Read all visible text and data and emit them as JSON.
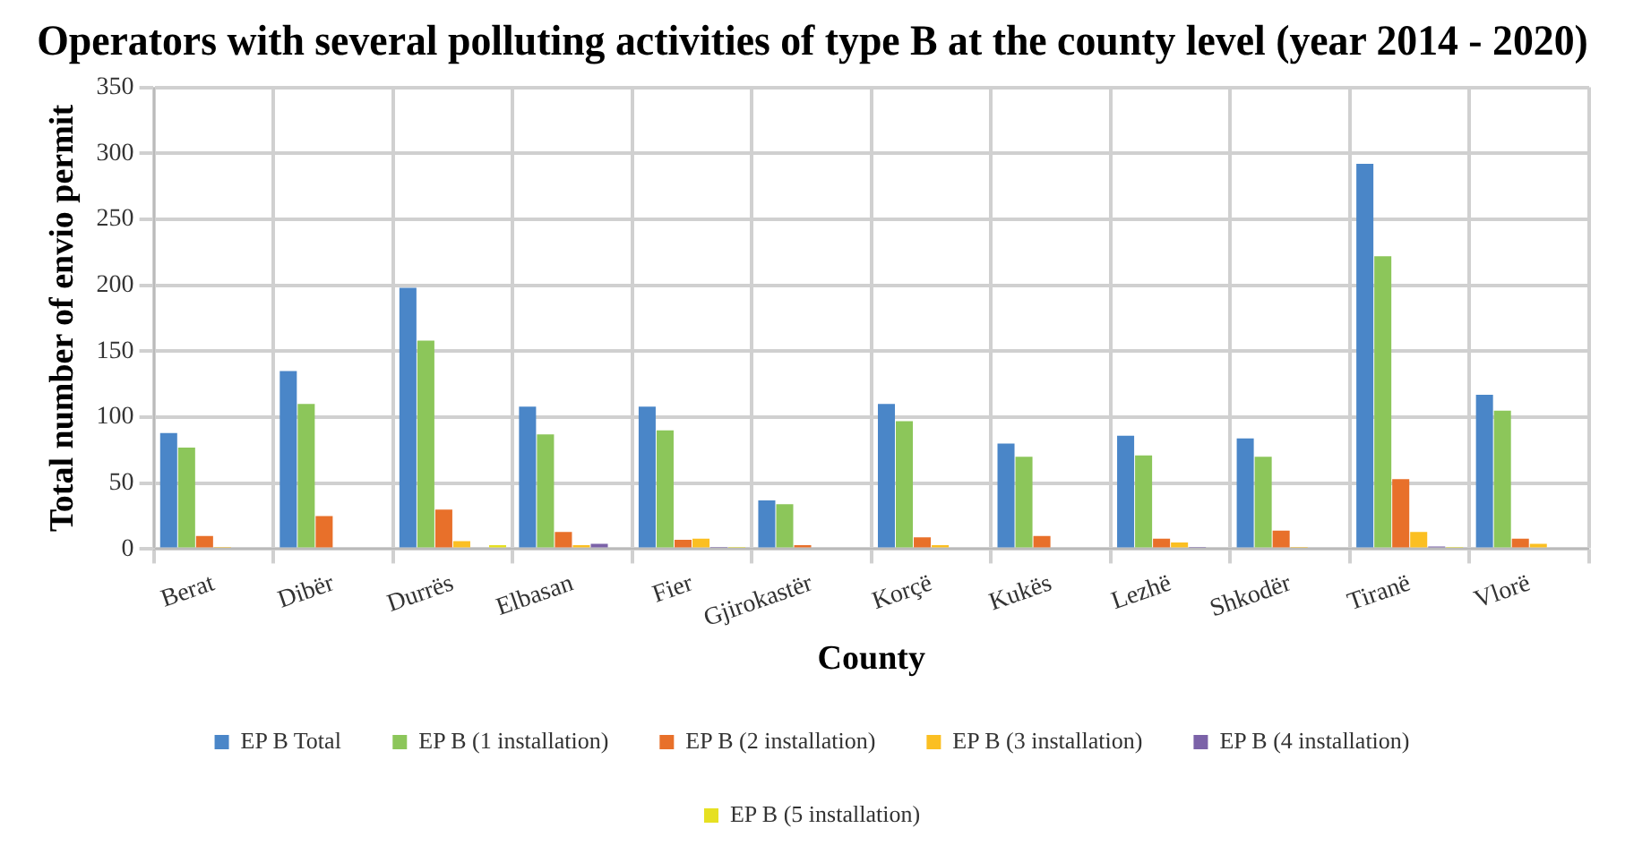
{
  "chart_data": {
    "type": "bar",
    "title": "Operators with several polluting activities of type B at the county level (year 2014 - 2020)",
    "xlabel": "County",
    "ylabel": "Total number of envio permit",
    "categories": [
      "Berat",
      "Dibër",
      "Durrës",
      "Elbasan",
      "Fier",
      "Gjirokastër",
      "Korçë",
      "Kukës",
      "Lezhë",
      "Shkodër",
      "Tiranë",
      "Vlorë"
    ],
    "series": [
      {
        "name": "EP B Total",
        "color": "#4a86c8",
        "values": [
          88,
          135,
          198,
          108,
          108,
          37,
          110,
          80,
          86,
          84,
          292,
          117
        ]
      },
      {
        "name": "EP B (1 installation)",
        "color": "#8cc65a",
        "values": [
          77,
          110,
          158,
          87,
          90,
          34,
          97,
          70,
          71,
          70,
          222,
          105
        ]
      },
      {
        "name": "EP B (2 installation)",
        "color": "#e8702a",
        "values": [
          10,
          25,
          30,
          13,
          7,
          3,
          9,
          10,
          8,
          14,
          53,
          8
        ]
      },
      {
        "name": "EP B (3 installation)",
        "color": "#fbbf22",
        "values": [
          1,
          0,
          6,
          3,
          8,
          0,
          3,
          0,
          5,
          1,
          13,
          4
        ]
      },
      {
        "name": "EP B (4 installation)",
        "color": "#7b62a8",
        "values": [
          0,
          0,
          0,
          4,
          1,
          0,
          0,
          0,
          1,
          0,
          2,
          0
        ]
      },
      {
        "name": "EP B (5 installation)",
        "color": "#e6e022",
        "values": [
          0,
          0,
          3,
          0,
          1,
          0,
          0,
          0,
          0,
          0,
          1,
          0
        ]
      }
    ],
    "ylim": [
      0,
      350
    ],
    "yticks": [
      0,
      50,
      100,
      150,
      200,
      250,
      300,
      350
    ],
    "grid": true,
    "legend": "bottom"
  }
}
